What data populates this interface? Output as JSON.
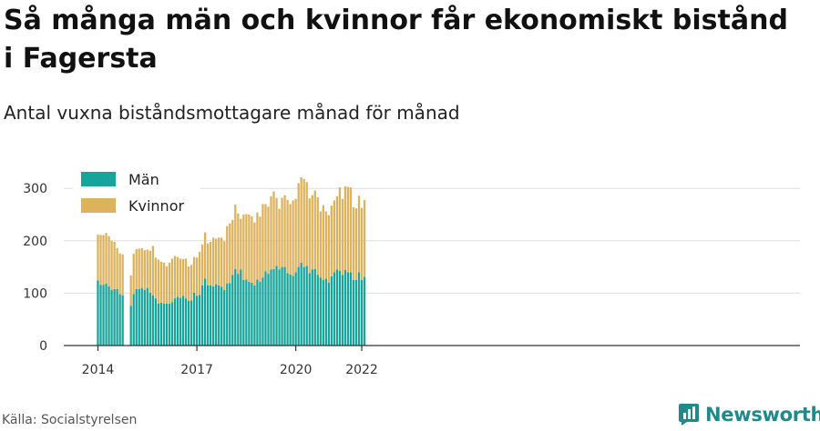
{
  "header": {
    "title": "Så många män och kvinnor får ekonomiskt bistånd i Fagersta",
    "subtitle": "Antal vuxna biståndsmottagare månad för månad"
  },
  "footer": {
    "source": "Källa: Socialstyrelsen",
    "brand": "Newsworthy"
  },
  "colors": {
    "men": "#17a59b",
    "women": "#ddb25d",
    "grid": "#dddddd",
    "axis": "#333333",
    "brand": "#1f8a8a"
  },
  "chart_data": {
    "type": "bar",
    "stacked": true,
    "start": "2014-01",
    "x_ticks": [
      "2014",
      "2017",
      "2020",
      "2022"
    ],
    "y_ticks": [
      0,
      100,
      200,
      300
    ],
    "ylim": [
      0,
      330
    ],
    "grid": true,
    "legend_position": "top-left",
    "series": [
      {
        "name": "Män",
        "color": "#17a59b",
        "values": [
          124,
          116,
          116,
          118,
          113,
          106,
          108,
          108,
          98,
          96,
          null,
          0,
          76,
          98,
          108,
          108,
          110,
          106,
          110,
          101,
          96,
          90,
          80,
          82,
          80,
          80,
          80,
          83,
          90,
          93,
          91,
          95,
          90,
          85,
          86,
          101,
          95,
          97,
          115,
          128,
          115,
          115,
          113,
          117,
          115,
          112,
          106,
          118,
          119,
          135,
          146,
          137,
          145,
          125,
          126,
          122,
          120,
          115,
          126,
          122,
          130,
          142,
          137,
          145,
          146,
          152,
          145,
          150,
          150,
          138,
          136,
          133,
          140,
          150,
          158,
          150,
          152,
          138,
          145,
          146,
          135,
          130,
          125,
          128,
          120,
          132,
          140,
          145,
          143,
          135,
          144,
          140,
          140,
          125,
          125,
          140,
          125,
          131
        ]
      },
      {
        "name": "Kvinnor",
        "color": "#ddb25d",
        "values": [
          88,
          95,
          95,
          97,
          96,
          94,
          90,
          78,
          78,
          78,
          null,
          0,
          58,
          77,
          76,
          77,
          76,
          76,
          73,
          80,
          94,
          78,
          84,
          78,
          78,
          71,
          78,
          83,
          81,
          76,
          75,
          70,
          76,
          66,
          68,
          68,
          73,
          82,
          78,
          88,
          80,
          83,
          93,
          87,
          91,
          94,
          93,
          110,
          114,
          105,
          123,
          115,
          97,
          125,
          125,
          128,
          127,
          120,
          128,
          124,
          140,
          128,
          128,
          140,
          148,
          130,
          116,
          132,
          137,
          140,
          134,
          144,
          140,
          160,
          163,
          168,
          160,
          143,
          142,
          150,
          148,
          126,
          143,
          128,
          129,
          135,
          137,
          140,
          159,
          145,
          160,
          163,
          162,
          139,
          137,
          146,
          138,
          147
        ]
      }
    ]
  }
}
